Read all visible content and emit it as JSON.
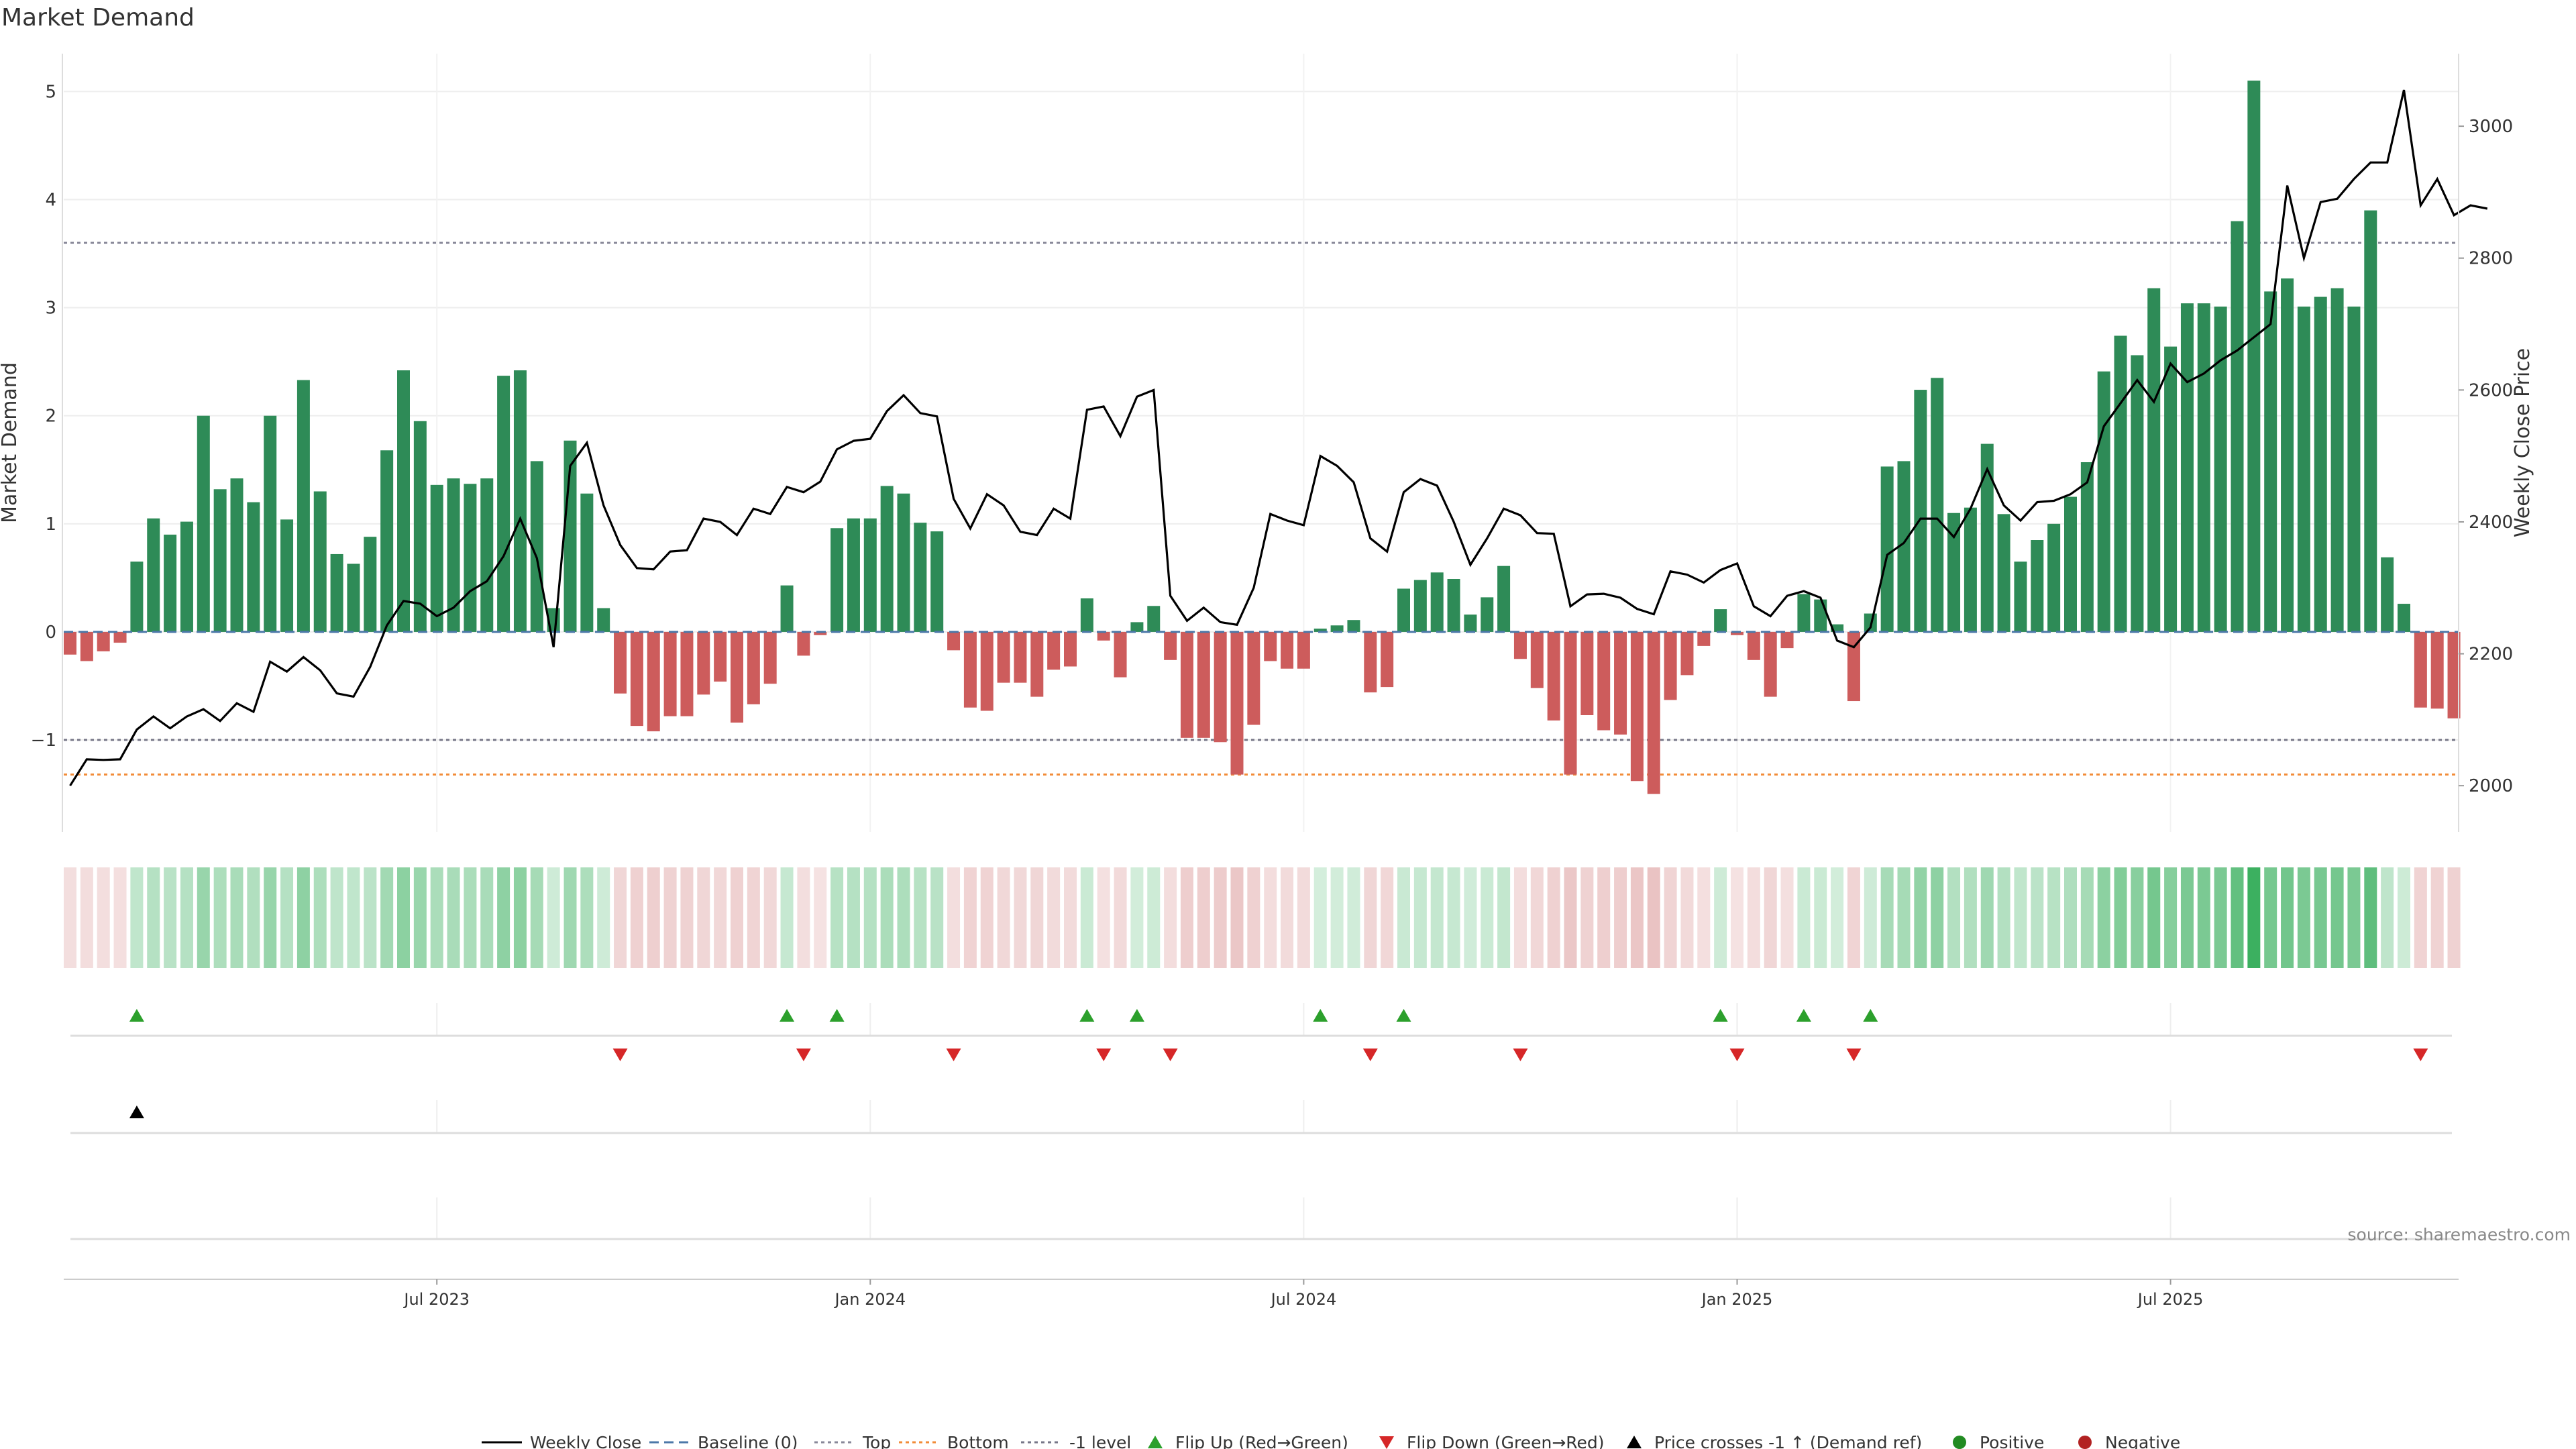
{
  "chart_data": {
    "type": "bar",
    "title": "Market Demand",
    "ylabel_left": "Market Demand",
    "ylabel_right": "Weekly Close Price",
    "source": "source: sharemaestro.com",
    "x_ticks": [
      "Jul 2023",
      "Jan 2024",
      "Jul 2024",
      "Jan 2025",
      "Jul 2025"
    ],
    "x_tick_weeks": [
      22,
      48,
      74,
      100,
      126
    ],
    "left_ticks": [
      -1,
      0,
      1,
      2,
      3,
      4,
      5
    ],
    "left_tick_labels": [
      "−1",
      "0",
      "1",
      "2",
      "3",
      "4",
      "5"
    ],
    "left_range": [
      -1.85,
      5.35
    ],
    "right_ticks": [
      2000,
      2200,
      2400,
      2600,
      2800,
      3000
    ],
    "right_range": [
      1930,
      3110
    ],
    "levels": {
      "baseline": 0,
      "top": 3.6,
      "bottom": -1.32,
      "minus_one": -1
    },
    "demand": [
      -0.21,
      -0.27,
      -0.18,
      -0.1,
      0.65,
      1.05,
      0.9,
      1.02,
      2.0,
      1.32,
      1.42,
      1.2,
      2.0,
      1.04,
      2.33,
      1.3,
      0.72,
      0.63,
      0.88,
      1.68,
      2.42,
      1.95,
      1.36,
      1.42,
      1.37,
      1.42,
      2.37,
      2.42,
      1.58,
      0.22,
      1.77,
      1.28,
      0.22,
      -0.57,
      -0.87,
      -0.92,
      -0.78,
      -0.78,
      -0.58,
      -0.46,
      -0.84,
      -0.67,
      -0.48,
      0.43,
      -0.22,
      -0.03,
      0.96,
      1.05,
      1.05,
      1.35,
      1.28,
      1.01,
      0.93,
      -0.17,
      -0.7,
      -0.73,
      -0.47,
      -0.47,
      -0.6,
      -0.35,
      -0.32,
      0.31,
      -0.08,
      -0.42,
      0.09,
      0.24,
      -0.26,
      -0.98,
      -0.98,
      -1.02,
      -1.32,
      -0.86,
      -0.27,
      -0.34,
      -0.34,
      0.03,
      0.06,
      0.11,
      -0.56,
      -0.51,
      0.4,
      0.48,
      0.55,
      0.49,
      0.16,
      0.32,
      0.61,
      -0.25,
      -0.52,
      -0.82,
      -1.32,
      -0.77,
      -0.91,
      -0.95,
      -1.38,
      -1.5,
      -0.63,
      -0.4,
      -0.13,
      0.21,
      -0.03,
      -0.26,
      -0.6,
      -0.15,
      0.35,
      0.3,
      0.07,
      -0.64,
      0.17,
      1.53,
      1.58,
      2.24,
      2.35,
      1.1,
      1.15,
      1.74,
      1.09,
      0.65,
      0.85,
      1.0,
      1.25,
      1.57,
      2.41,
      2.74,
      2.56,
      3.18,
      2.64,
      3.04,
      3.04,
      3.01,
      3.8,
      5.1,
      3.15,
      3.27,
      3.01,
      3.1,
      3.18,
      3.01,
      3.9,
      0.69,
      0.26,
      -0.7,
      -0.71,
      -0.8
    ],
    "price": [
      2000,
      2040,
      2039,
      2040,
      2085,
      2105,
      2087,
      2105,
      2116,
      2098,
      2125,
      2112,
      2188,
      2173,
      2195,
      2175,
      2140,
      2135,
      2180,
      2243,
      2280,
      2276,
      2257,
      2270,
      2295,
      2310,
      2348,
      2405,
      2345,
      2210,
      2485,
      2520,
      2425,
      2365,
      2330,
      2328,
      2355,
      2357,
      2405,
      2400,
      2380,
      2420,
      2412,
      2453,
      2445,
      2461,
      2510,
      2523,
      2526,
      2568,
      2592,
      2565,
      2560,
      2435,
      2390,
      2442,
      2425,
      2385,
      2380,
      2420,
      2405,
      2570,
      2575,
      2530,
      2590,
      2600,
      2288,
      2250,
      2270,
      2248,
      2244,
      2300,
      2412,
      2402,
      2395,
      2500,
      2485,
      2460,
      2375,
      2355,
      2445,
      2465,
      2455,
      2400,
      2335,
      2375,
      2420,
      2410,
      2383,
      2382,
      2272,
      2290,
      2291,
      2285,
      2268,
      2260,
      2325,
      2320,
      2308,
      2327,
      2337,
      2272,
      2257,
      2288,
      2295,
      2285,
      2220,
      2210,
      2240,
      2350,
      2368,
      2405,
      2405,
      2377,
      2420,
      2480,
      2425,
      2402,
      2430,
      2432,
      2442,
      2460,
      2545,
      2580,
      2615,
      2582,
      2640,
      2612,
      2625,
      2645,
      2660,
      2680,
      2700,
      2910,
      2800,
      2885,
      2890,
      2920,
      2945,
      2945,
      3055,
      2880,
      2920,
      2865,
      2880,
      2875
    ],
    "heat_color_weeks": [],
    "flip_up_weeks": [
      4,
      43,
      46,
      61,
      64,
      75,
      80,
      99,
      104,
      108
    ],
    "flip_down_weeks": [
      33,
      44,
      53,
      62,
      66,
      78,
      87,
      100,
      107,
      141
    ],
    "price_cross_weeks": [
      4
    ],
    "legend": [
      "Weekly Close",
      "Baseline (0)",
      "Top",
      "Bottom",
      "-1 level",
      "Flip Up (Red→Green)",
      "Flip Down (Green→Red)",
      "Price crosses -1 ↑ (Demand ref)",
      "Positive",
      "Negative"
    ],
    "colors": {
      "positive": "#2e8b57",
      "negative": "#cd5c5c",
      "price": "#000000",
      "flip_up": "#2ca02c",
      "flip_down": "#d62728",
      "cross": "#000000",
      "top_line": "#888899",
      "bottom_line": "#f28c38",
      "minus_one_line": "#777788",
      "baseline": "#4c78a8",
      "legend_positive": "#228b22",
      "legend_negative": "#b22222"
    }
  }
}
